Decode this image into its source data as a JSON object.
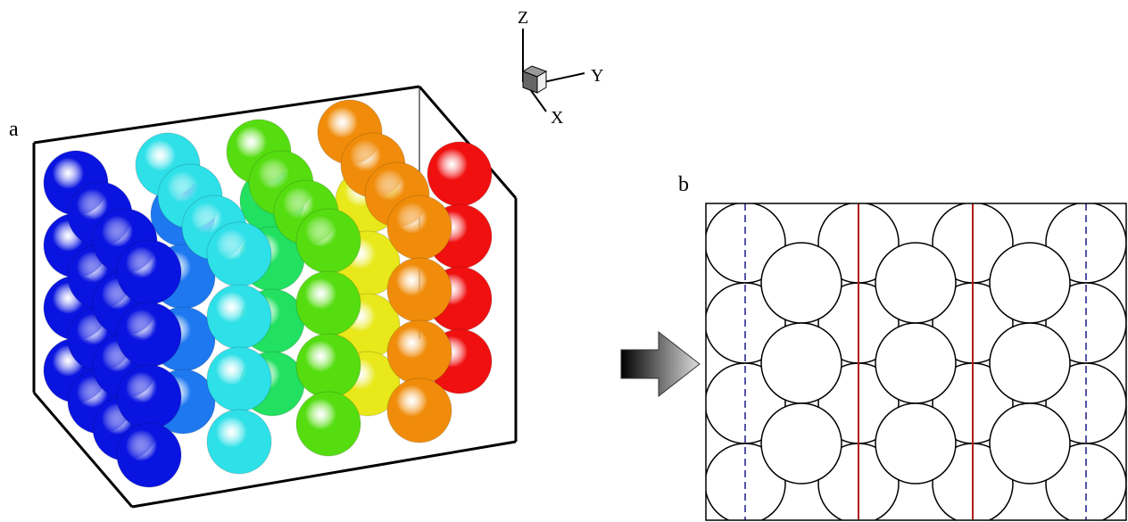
{
  "panels": [
    {
      "label": "a"
    },
    {
      "label": "b"
    }
  ],
  "axes": {
    "z": "Z",
    "y": "Y",
    "x": "X"
  }
}
